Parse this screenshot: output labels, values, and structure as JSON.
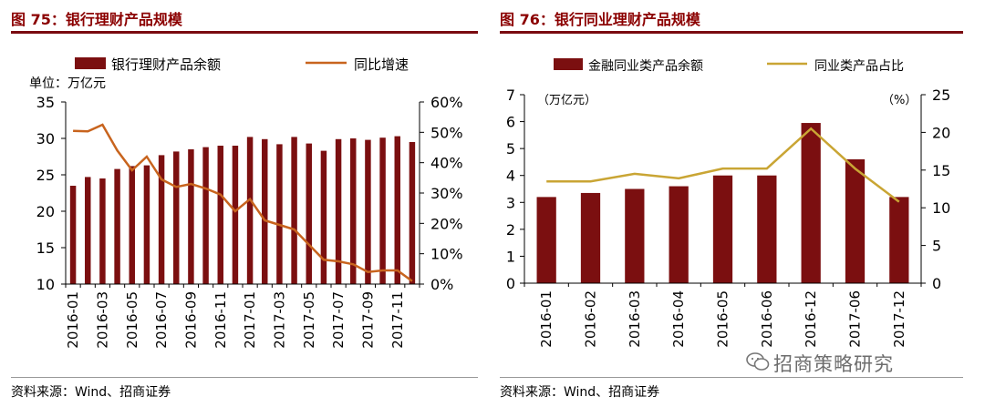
{
  "left_panel": {
    "title": "图 75：银行理财产品规模",
    "source": "资料来源：Wind、招商证券"
  },
  "right_panel": {
    "title": "图 76：银行同业理财产品规模",
    "source": "资料来源：Wind、招商证券"
  },
  "watermark": "招商策略研究",
  "colors": {
    "bar": "#7b0f10",
    "line_left": "#c8641e",
    "line_right": "#c9a534",
    "title": "#8b0000"
  },
  "chart_data": [
    {
      "type": "bar",
      "title": "",
      "unit_label": "单位：万亿元",
      "categories": [
        "2016-01",
        "2016-02",
        "2016-03",
        "2016-04",
        "2016-05",
        "2016-06",
        "2016-07",
        "2016-08",
        "2016-09",
        "2016-10",
        "2016-11",
        "2016-12",
        "2017-01",
        "2017-02",
        "2017-03",
        "2017-04",
        "2017-05",
        "2017-06",
        "2017-07",
        "2017-08",
        "2017-09",
        "2017-10",
        "2017-11",
        "2017-12"
      ],
      "tick_labels": [
        "2016-01",
        "2016-03",
        "2016-05",
        "2016-07",
        "2016-09",
        "2016-11",
        "2017-01",
        "2017-03",
        "2017-05",
        "2017-07",
        "2017-09",
        "2017-11"
      ],
      "series": [
        {
          "name": "银行理财产品余额",
          "axis": "left",
          "kind": "bar",
          "values": [
            23.5,
            24.7,
            24.5,
            25.8,
            26.2,
            26.3,
            27.7,
            28.2,
            28.5,
            28.8,
            29.0,
            29.0,
            30.2,
            29.9,
            29.2,
            30.2,
            29.3,
            28.3,
            29.9,
            30.0,
            29.8,
            30.1,
            30.3,
            29.5
          ]
        },
        {
          "name": "同比增速",
          "axis": "right",
          "kind": "line",
          "values": [
            50.5,
            50.3,
            52.5,
            44.0,
            37.5,
            42.0,
            34.5,
            32.0,
            33.0,
            31.5,
            29.5,
            24.0,
            28.0,
            21.0,
            19.5,
            18.0,
            13.0,
            8.0,
            7.5,
            6.5,
            4.0,
            4.5,
            4.5,
            1.0
          ]
        }
      ],
      "y_left": {
        "min": 10,
        "max": 35,
        "ticks": [
          "10",
          "15",
          "20",
          "25",
          "30",
          "35"
        ]
      },
      "y_right": {
        "min": 0,
        "max": 60,
        "ticks": [
          "0%",
          "10%",
          "20%",
          "30%",
          "40%",
          "50%",
          "60%"
        ]
      },
      "legend": "top"
    },
    {
      "type": "bar",
      "title": "",
      "unit_left": "（万亿元）",
      "unit_right": "（%）",
      "categories": [
        "2016-01",
        "2016-02",
        "2016-03",
        "2016-04",
        "2016-05",
        "2016-06",
        "2016-12",
        "2017-06",
        "2017-12"
      ],
      "series": [
        {
          "name": "金融同业类产品余额",
          "axis": "left",
          "kind": "bar",
          "values": [
            3.2,
            3.35,
            3.5,
            3.6,
            4.0,
            4.0,
            5.95,
            4.6,
            3.2
          ]
        },
        {
          "name": "同业类产品占比",
          "axis": "right",
          "kind": "line",
          "values": [
            13.5,
            13.5,
            14.5,
            13.9,
            15.2,
            15.2,
            20.5,
            15.2,
            10.8
          ]
        }
      ],
      "y_left": {
        "min": 0,
        "max": 7,
        "ticks": [
          "0",
          "1",
          "2",
          "3",
          "4",
          "5",
          "6",
          "7"
        ]
      },
      "y_right": {
        "min": 0,
        "max": 25,
        "ticks": [
          "0",
          "5",
          "10",
          "15",
          "20",
          "25"
        ]
      },
      "legend": "top"
    }
  ]
}
